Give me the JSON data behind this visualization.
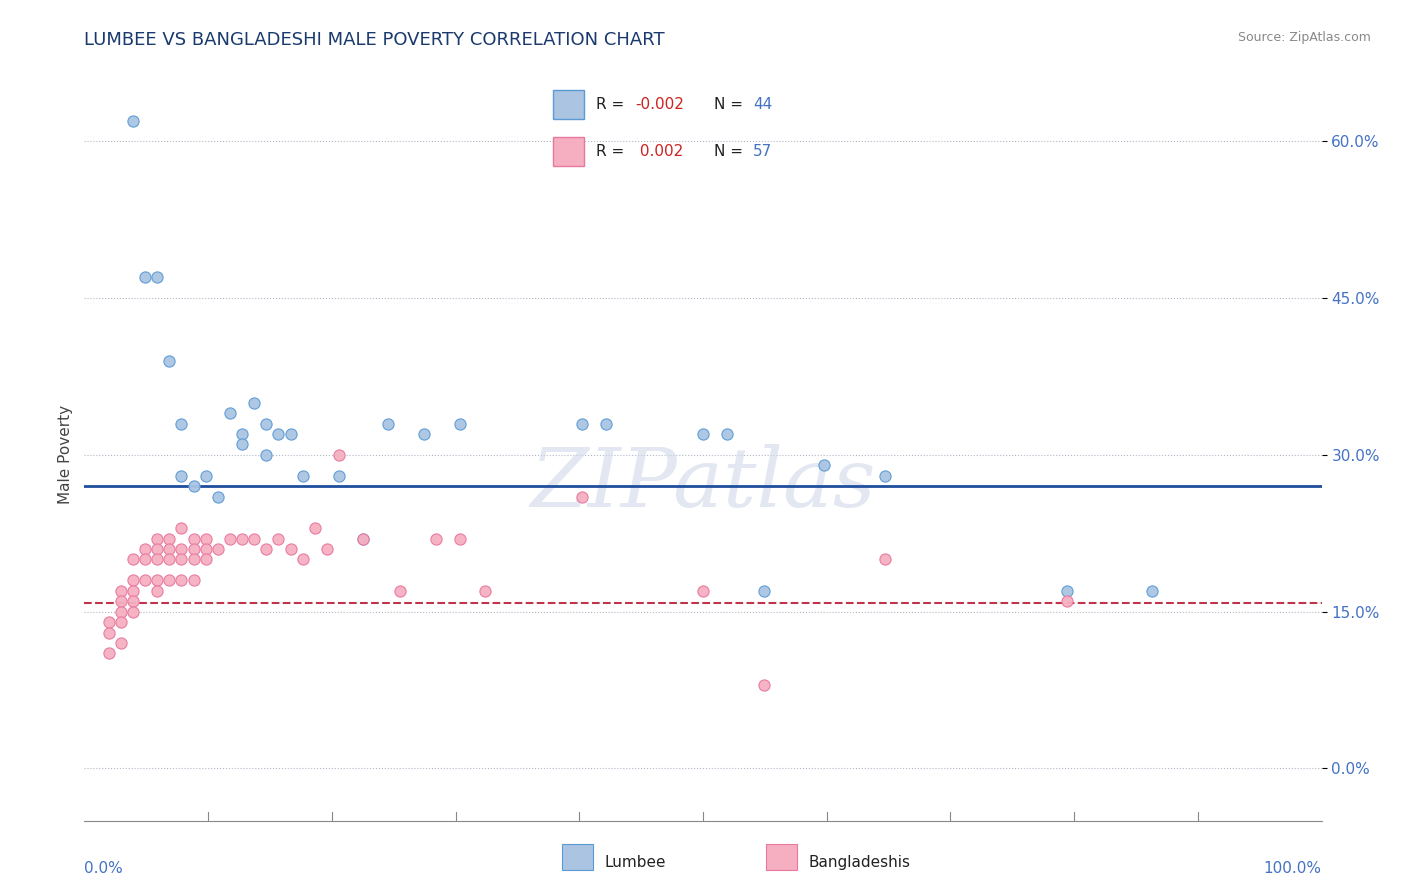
{
  "title": "LUMBEE VS BANGLADESHI MALE POVERTY CORRELATION CHART",
  "source": "Source: ZipAtlas.com",
  "ylabel": "Male Poverty",
  "xlim": [
    -1,
    101
  ],
  "ylim": [
    -5,
    65
  ],
  "yticks": [
    0,
    15,
    30,
    45,
    60
  ],
  "ytick_labels": [
    "0.0%",
    "15.0%",
    "30.0%",
    "45.0%",
    "60.0%"
  ],
  "lumbee_color": "#aac4e2",
  "bangladeshi_color": "#f5afc0",
  "lumbee_edge_color": "#5b9bd5",
  "bangladeshi_edge_color": "#e878a0",
  "lumbee_line_color": "#1f4e9c",
  "bangladeshi_line_color": "#c0334d",
  "regression_lumbee_y": 27.0,
  "regression_bangladeshi_y": 15.8,
  "watermark": "ZIPatlas",
  "lumbee_x": [
    3,
    4,
    5,
    6,
    7,
    7,
    8,
    9,
    10,
    11,
    12,
    12,
    13,
    14,
    14,
    15,
    16,
    17,
    20,
    22,
    24,
    27,
    30,
    40,
    42,
    50,
    52,
    55,
    60,
    65,
    80,
    87
  ],
  "lumbee_y": [
    62,
    47,
    47,
    39,
    33,
    28,
    27,
    28,
    26,
    34,
    32,
    31,
    35,
    33,
    30,
    32,
    32,
    28,
    28,
    22,
    33,
    32,
    33,
    33,
    33,
    32,
    32,
    17,
    29,
    28,
    17,
    17
  ],
  "bangladeshi_x": [
    1,
    1,
    1,
    2,
    2,
    2,
    2,
    2,
    3,
    3,
    3,
    3,
    3,
    4,
    4,
    4,
    5,
    5,
    5,
    5,
    5,
    6,
    6,
    6,
    6,
    7,
    7,
    7,
    7,
    8,
    8,
    8,
    8,
    9,
    9,
    9,
    10,
    11,
    12,
    13,
    14,
    15,
    16,
    17,
    18,
    19,
    20,
    22,
    25,
    28,
    30,
    32,
    40,
    50,
    55,
    65,
    80
  ],
  "bangladeshi_y": [
    14,
    13,
    11,
    17,
    16,
    15,
    14,
    12,
    20,
    18,
    17,
    16,
    15,
    21,
    20,
    18,
    22,
    21,
    20,
    18,
    17,
    22,
    21,
    20,
    18,
    23,
    21,
    20,
    18,
    22,
    21,
    20,
    18,
    22,
    21,
    20,
    21,
    22,
    22,
    22,
    21,
    22,
    21,
    20,
    23,
    21,
    30,
    22,
    17,
    22,
    22,
    17,
    26,
    17,
    8,
    20,
    16
  ]
}
